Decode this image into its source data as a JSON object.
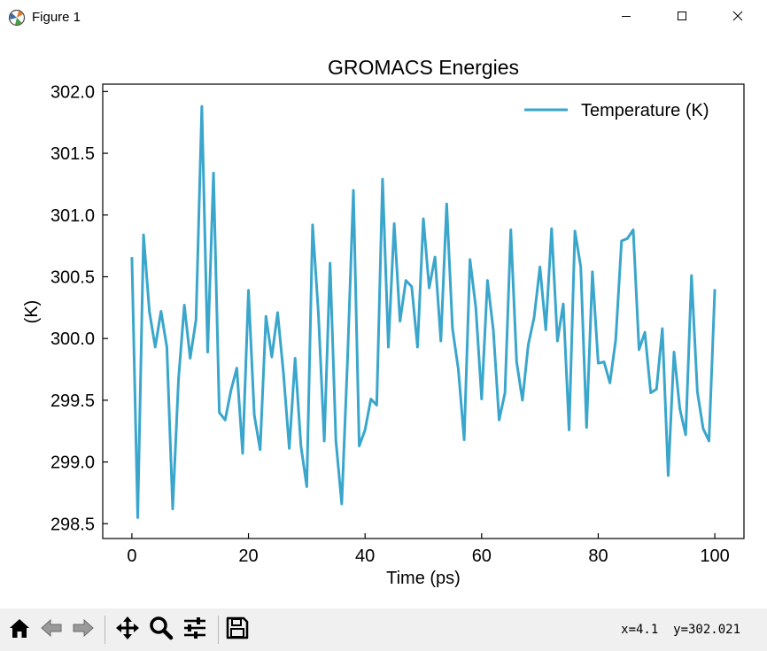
{
  "window": {
    "title": "Figure 1"
  },
  "icons": {
    "minimize": "minimize-icon",
    "maximize": "maximize-icon",
    "close": "close-icon",
    "home": "home-icon",
    "back": "back-arrow-icon",
    "forward": "forward-arrow-icon",
    "pan": "pan-move-icon",
    "zoom": "zoom-magnifier-icon",
    "configure": "configure-subplots-icon",
    "save": "save-floppy-icon"
  },
  "toolbar": {
    "coordinates": "x=4.1  y=302.021"
  },
  "colors": {
    "line": "#3aa6cc",
    "toolbar_bg": "#f0f0f0"
  },
  "chart_data": {
    "type": "line",
    "title": "GROMACS Energies",
    "xlabel": "Time (ps)",
    "ylabel": "(K)",
    "xlim": [
      -5,
      105
    ],
    "ylim": [
      298.38,
      302.06
    ],
    "xticks": [
      0,
      20,
      40,
      60,
      80,
      100
    ],
    "yticks": [
      298.5,
      299.0,
      299.5,
      300.0,
      300.5,
      301.0,
      301.5,
      302.0
    ],
    "ytick_labels": [
      "298.5",
      "299.0",
      "299.5",
      "300.0",
      "300.5",
      "301.0",
      "301.5",
      "302.0"
    ],
    "grid": false,
    "legend_position": "upper-right",
    "series": [
      {
        "name": "Temperature (K)",
        "color": "#3aa6cc",
        "x": [
          0,
          1,
          2,
          3,
          4,
          5,
          6,
          7,
          8,
          9,
          10,
          11,
          12,
          13,
          14,
          15,
          16,
          17,
          18,
          19,
          20,
          21,
          22,
          23,
          24,
          25,
          26,
          27,
          28,
          29,
          30,
          31,
          32,
          33,
          34,
          35,
          36,
          37,
          38,
          39,
          40,
          41,
          42,
          43,
          44,
          45,
          46,
          47,
          48,
          49,
          50,
          51,
          52,
          53,
          54,
          55,
          56,
          57,
          58,
          59,
          60,
          61,
          62,
          63,
          64,
          65,
          66,
          67,
          68,
          69,
          70,
          71,
          72,
          73,
          74,
          75,
          76,
          77,
          78,
          79,
          80,
          81,
          82,
          83,
          84,
          85,
          86,
          87,
          88,
          89,
          90,
          91,
          92,
          93,
          94,
          95,
          96,
          97,
          98,
          99,
          100
        ],
        "values": [
          300.66,
          298.55,
          300.84,
          300.22,
          299.93,
          300.22,
          299.93,
          298.62,
          299.67,
          300.27,
          299.84,
          300.15,
          301.88,
          299.89,
          301.34,
          299.4,
          299.34,
          299.58,
          299.76,
          299.07,
          300.39,
          299.38,
          299.1,
          300.18,
          299.85,
          300.21,
          299.72,
          299.11,
          299.84,
          299.13,
          298.8,
          300.92,
          300.2,
          299.17,
          300.61,
          299.17,
          298.66,
          299.84,
          301.2,
          299.13,
          299.26,
          299.51,
          299.46,
          301.29,
          299.93,
          300.93,
          300.14,
          300.47,
          300.42,
          299.93,
          300.97,
          300.41,
          300.66,
          299.98,
          301.09,
          300.08,
          299.75,
          299.18,
          300.64,
          300.25,
          299.51,
          300.47,
          300.07,
          299.34,
          299.56,
          300.88,
          299.81,
          299.5,
          299.95,
          300.17,
          300.58,
          300.07,
          300.89,
          299.98,
          300.28,
          299.26,
          300.87,
          300.58,
          299.28,
          300.54,
          299.8,
          299.81,
          299.64,
          299.99,
          300.79,
          300.81,
          300.88,
          299.91,
          300.05,
          299.56,
          299.59,
          300.08,
          298.89,
          299.89,
          299.43,
          299.22,
          300.51,
          299.57,
          299.27,
          299.17,
          300.4
        ]
      }
    ]
  }
}
